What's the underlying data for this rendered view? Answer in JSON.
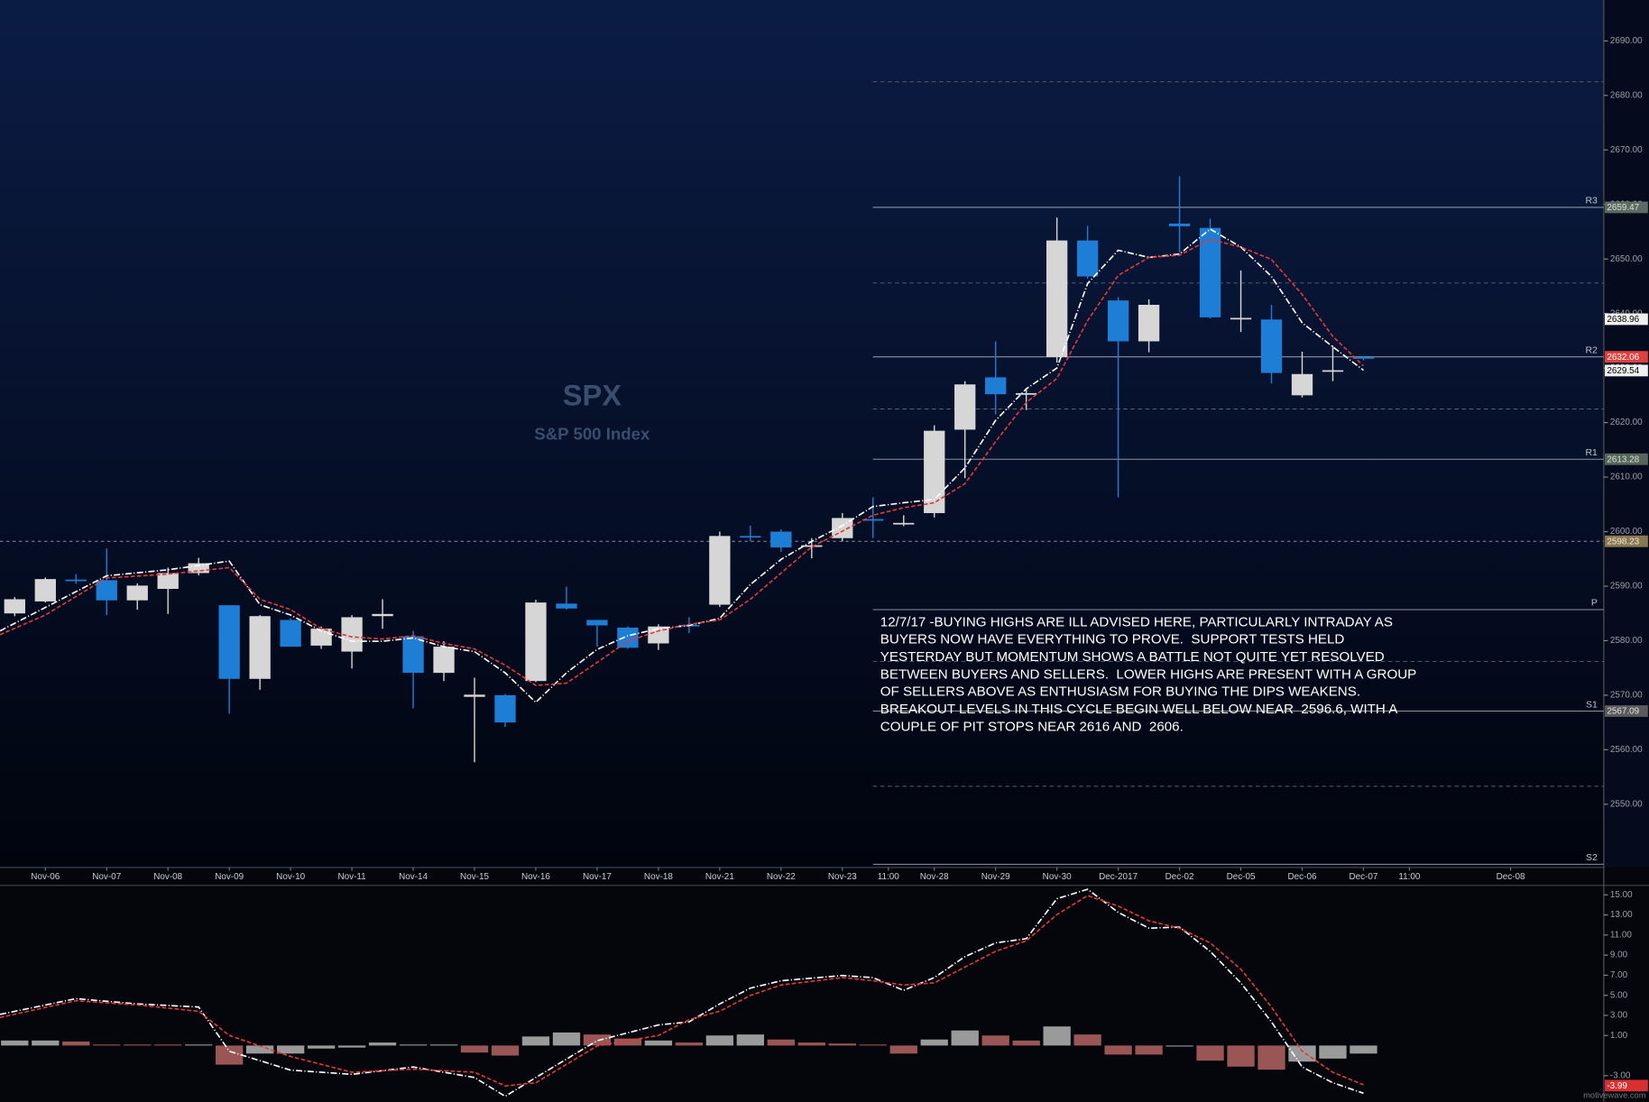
{
  "chart_data": [
    {
      "type": "candlestick",
      "title": "SPX",
      "subtitle": "S&P 500 Index",
      "x": [
        0,
        1,
        2,
        3,
        4,
        5,
        6,
        7,
        8,
        9,
        10,
        11,
        12,
        13,
        14,
        15,
        16,
        17,
        18,
        19,
        20,
        21,
        22,
        23,
        24,
        25,
        26,
        27,
        28,
        29,
        30,
        31,
        32,
        33,
        34,
        35,
        36,
        37,
        38,
        39,
        40,
        41,
        42,
        43,
        44
      ],
      "open": [
        2585.0,
        2587.2,
        2591.2,
        2591.1,
        2587.4,
        2589.5,
        2592.4,
        2586.5,
        2573.0,
        2583.8,
        2579.1,
        2578.0,
        2584.5,
        2580.8,
        2574.1,
        2569.7,
        2570.0,
        2572.6,
        2586.8,
        2583.8,
        2582.4,
        2579.5,
        2582.9,
        2586.6,
        2599.2,
        2600.0,
        2597.2,
        2598.8,
        2602.3,
        2601.4,
        2603.4,
        2618.7,
        2628.3,
        2625.1,
        2632.0,
        2653.4,
        2642.4,
        2634.9,
        2656.5,
        2655.7,
        2639.0,
        2638.9,
        2625.0,
        2629.4,
        2632.0
      ],
      "high": [
        2588.0,
        2591.6,
        2592.2,
        2596.9,
        2590.5,
        2593.4,
        2595.2,
        2586.5,
        2584.7,
        2584.1,
        2582.6,
        2584.7,
        2587.6,
        2581.8,
        2579.9,
        2573.2,
        2570.2,
        2587.5,
        2589.9,
        2583.8,
        2582.6,
        2583.0,
        2584.3,
        2600.0,
        2601.1,
        2600.4,
        2598.8,
        2603.4,
        2606.3,
        2603.0,
        2619.5,
        2627.6,
        2634.9,
        2626.2,
        2657.6,
        2656.1,
        2643.0,
        2642.6,
        2665.2,
        2657.4,
        2647.9,
        2641.6,
        2633.0,
        2634.1,
        2632.2
      ],
      "low": [
        2584.5,
        2587.0,
        2590.4,
        2584.7,
        2585.7,
        2584.9,
        2592.0,
        2566.6,
        2571.0,
        2578.9,
        2578.5,
        2574.9,
        2582.2,
        2567.6,
        2572.6,
        2557.7,
        2564.2,
        2572.4,
        2585.7,
        2578.9,
        2578.5,
        2578.3,
        2581.4,
        2586.2,
        2598.2,
        2596.3,
        2595.1,
        2598.2,
        2598.8,
        2601.0,
        2602.6,
        2609.8,
        2621.5,
        2622.3,
        2631.0,
        2646.4,
        2606.3,
        2632.9,
        2651.2,
        2639.1,
        2636.6,
        2627.2,
        2624.6,
        2627.6,
        2631.4
      ],
      "close": [
        2587.6,
        2591.3,
        2591.0,
        2587.4,
        2590.1,
        2592.4,
        2594.2,
        2573.0,
        2584.5,
        2578.9,
        2582.2,
        2584.3,
        2584.9,
        2574.1,
        2578.9,
        2570.1,
        2565.0,
        2587.0,
        2585.9,
        2582.8,
        2578.7,
        2582.6,
        2582.7,
        2599.2,
        2599.0,
        2597.1,
        2597.5,
        2602.5,
        2602.0,
        2601.6,
        2618.5,
        2627.0,
        2625.2,
        2625.4,
        2653.4,
        2646.8,
        2634.9,
        2641.6,
        2656.0,
        2639.3,
        2639.2,
        2629.1,
        2628.9,
        2629.6,
        2631.8
      ],
      "up_color": "#d6d6d6",
      "down_color": "#1e7ed6",
      "overlays": [
        {
          "color": "#ffffff",
          "dash": "6 2 1 2",
          "x": [
            -0.48,
            1,
            3,
            5,
            7,
            8,
            9,
            10,
            11,
            12,
            13,
            14,
            15,
            16,
            17,
            18,
            19,
            20,
            21,
            22,
            23,
            24,
            25,
            26,
            27,
            28,
            29,
            30,
            31,
            32,
            33,
            34,
            35,
            36,
            37,
            38,
            39,
            40,
            41,
            42,
            43,
            44
          ],
          "values": [
            2581.8,
            2586.1,
            2591.9,
            2593.0,
            2594.6,
            2586.6,
            2584.7,
            2581.8,
            2579.9,
            2579.9,
            2580.5,
            2578.9,
            2578.0,
            2574.1,
            2568.7,
            2574.1,
            2578.4,
            2580.9,
            2582.2,
            2582.8,
            2584.1,
            2590.3,
            2594.9,
            2598.2,
            2601.1,
            2604.6,
            2605.3,
            2605.9,
            2611.7,
            2620.4,
            2626.2,
            2630.0,
            2645.5,
            2651.6,
            2650.3,
            2650.9,
            2655.5,
            2652.2,
            2646.8,
            2638.3,
            2633.9,
            2629.6
          ]
        },
        {
          "color": "#e03a3a",
          "dash": "4 2",
          "x": [
            -0.48,
            1,
            3,
            5,
            7,
            8,
            9,
            10,
            11,
            12,
            13,
            14,
            15,
            16,
            17,
            18,
            19,
            20,
            21,
            22,
            23,
            24,
            25,
            26,
            27,
            28,
            29,
            30,
            31,
            32,
            33,
            34,
            35,
            36,
            37,
            38,
            39,
            40,
            41,
            42,
            43,
            44
          ],
          "values": [
            2581.1,
            2584.7,
            2591.5,
            2592.2,
            2593.4,
            2587.6,
            2585.7,
            2582.2,
            2580.7,
            2580.3,
            2580.9,
            2579.5,
            2578.5,
            2575.5,
            2571.8,
            2572.2,
            2576.0,
            2579.9,
            2581.8,
            2583.0,
            2583.8,
            2587.6,
            2592.4,
            2597.2,
            2600.1,
            2603.0,
            2604.4,
            2605.3,
            2608.8,
            2616.5,
            2623.7,
            2628.1,
            2638.7,
            2647.0,
            2650.3,
            2650.7,
            2653.6,
            2652.2,
            2649.9,
            2643.5,
            2635.8,
            2630.4
          ]
        }
      ],
      "xlim": [
        -0.48,
        51.84
      ],
      "ylim": [
        2538.4,
        2697.5
      ],
      "xticks": [
        {
          "value": 1,
          "label": "Nov-06"
        },
        {
          "value": 3,
          "label": "Nov-07"
        },
        {
          "value": 5,
          "label": "Nov-08"
        },
        {
          "value": 7,
          "label": "Nov-09"
        },
        {
          "value": 9,
          "label": "Nov-10"
        },
        {
          "value": 11,
          "label": "Nov-11"
        },
        {
          "value": 13,
          "label": "Nov-14"
        },
        {
          "value": 15,
          "label": "Nov-15"
        },
        {
          "value": 17,
          "label": "Nov-16"
        },
        {
          "value": 19,
          "label": "Nov-17"
        },
        {
          "value": 21,
          "label": "Nov-18"
        },
        {
          "value": 23,
          "label": "Nov-21"
        },
        {
          "value": 25,
          "label": "Nov-22"
        },
        {
          "value": 27,
          "label": "Nov-23"
        },
        {
          "value": 28.5,
          "label": "11:00"
        },
        {
          "value": 30,
          "label": "Nov-28"
        },
        {
          "value": 32,
          "label": "Nov-29"
        },
        {
          "value": 34,
          "label": "Nov-30"
        },
        {
          "value": 36,
          "label": "Dec-2017"
        },
        {
          "value": 38,
          "label": "Dec-02"
        },
        {
          "value": 40,
          "label": "Dec-05"
        },
        {
          "value": 42,
          "label": "Dec-06"
        },
        {
          "value": 44,
          "label": "Dec-07"
        },
        {
          "value": 45.5,
          "label": "11:00"
        },
        {
          "value": 48.8,
          "label": "Dec-08"
        }
      ],
      "yticks": [
        {
          "value": 2550,
          "label": "2550.00"
        },
        {
          "value": 2560,
          "label": "2560.00"
        },
        {
          "value": 2570,
          "label": "2570.00"
        },
        {
          "value": 2580,
          "label": "2580.00"
        },
        {
          "value": 2590,
          "label": "2590.00"
        },
        {
          "value": 2600,
          "label": "2600.00"
        },
        {
          "value": 2610,
          "label": "2610.00"
        },
        {
          "value": 2620,
          "label": "2620.00"
        },
        {
          "value": 2630,
          "label": "2630.00"
        },
        {
          "value": 2640,
          "label": "2640.00"
        },
        {
          "value": 2650,
          "label": "2650.00"
        },
        {
          "value": 2660,
          "label": "2660.00"
        },
        {
          "value": 2670,
          "label": "2670.00"
        },
        {
          "value": 2680,
          "label": "2680.00"
        },
        {
          "value": 2690,
          "label": "2690.00"
        }
      ],
      "levels": [
        {
          "label": "R3",
          "value": 2659.47,
          "box_color": "#5c6b60",
          "text_color": "#d8e0d8"
        },
        {
          "label": "R2",
          "value": 2632.06,
          "box_color": "#e04040",
          "text_color": "#ffffff"
        },
        {
          "label": "R1",
          "value": 2613.28,
          "box_color": "#56665a",
          "text_color": "#d8e0d8"
        },
        {
          "label": "P",
          "value": 2585.7
        },
        {
          "label": "S1",
          "value": 2567.09,
          "box_color": "#5a5a5a",
          "text_color": "#e0e0e0"
        },
        {
          "label": "S2",
          "value": 2539.0
        }
      ],
      "mid_levels": [
        2682.5,
        2645.6,
        2622.5,
        2576.2,
        2553.3
      ],
      "price_labels": [
        {
          "value": 2638.96,
          "color": "#f0f0f0",
          "text_color": "#000000"
        },
        {
          "value": 2629.54,
          "color": "#f0f0f0",
          "text_color": "#000000"
        }
      ],
      "reference_line": {
        "value": 2598.23,
        "color": "#8a7852",
        "text_color": "#efe6d2"
      },
      "annotation": [
        "12/7/17 -BUYING HIGHS ARE ILL ADVISED HERE, PARTICULARLY INTRADAY AS",
        "BUYERS NOW HAVE EVERYTHING TO PROVE.  SUPPORT TESTS HELD",
        "YESTERDAY BUT MOMENTUM SHOWS A BATTLE NOT QUITE YET RESOLVED",
        "BETWEEN BUYERS AND SELLERS.  LOWER HIGHS ARE PRESENT WITH A GROUP",
        "OF SELLERS ABOVE AS ENTHUSIASM FOR BUYING THE DIPS WEAKENS.",
        "BREAKOUT LEVELS IN THIS CYCLE BEGIN WELL BELOW NEAR  2596.6, WITH A",
        "COUPLE OF PIT STOPS NEAR 2616 AND  2606."
      ]
    },
    {
      "type": "macd",
      "x": [
        -0.48,
        2,
        4,
        6,
        7,
        9,
        11,
        13,
        15,
        16,
        17,
        19,
        21,
        22,
        23,
        24,
        25,
        27,
        28,
        29,
        30,
        31,
        32,
        33,
        34,
        35,
        36,
        37,
        38,
        39,
        40,
        41,
        42,
        43,
        44
      ],
      "series": [
        {
          "color": "#ffffff",
          "dash": "6 2 1 2",
          "values": [
            3.1,
            4.67,
            4.14,
            3.83,
            -0.57,
            -2.45,
            -2.87,
            -2.14,
            -3.18,
            -5.06,
            -3.18,
            0.48,
            2.05,
            2.36,
            4.14,
            5.71,
            6.45,
            6.97,
            6.76,
            5.5,
            6.76,
            8.85,
            10.21,
            10.63,
            14.61,
            15.55,
            13.25,
            11.68,
            11.78,
            9.38,
            6.24,
            2.36,
            -2.14,
            -3.7,
            -4.75
          ]
        },
        {
          "color": "#e03a3a",
          "dash": "4 2",
          "values": [
            2.79,
            4.46,
            4.04,
            3.41,
            1.0,
            -1.09,
            -2.66,
            -2.35,
            -2.66,
            -4.02,
            -3.7,
            -0.04,
            1.0,
            2.57,
            3.41,
            4.98,
            6.03,
            6.76,
            6.45,
            6.03,
            6.24,
            7.81,
            9.38,
            10.42,
            13.03,
            14.92,
            13.88,
            12.41,
            11.68,
            10.21,
            7.6,
            3.83,
            -0.57,
            -2.66,
            -3.91
          ]
        }
      ],
      "histogram": {
        "x": [
          0,
          1,
          2,
          3,
          4,
          5,
          6,
          7,
          8,
          9,
          10,
          11,
          12,
          13,
          14,
          15,
          16,
          17,
          18,
          19,
          20,
          21,
          22,
          23,
          24,
          25,
          26,
          27,
          28,
          29,
          30,
          31,
          32,
          33,
          34,
          35,
          36,
          37,
          38,
          39,
          40,
          41,
          42,
          43,
          44
        ],
        "values": [
          0.5,
          0.5,
          0.4,
          0.1,
          0.1,
          0.1,
          0.1,
          -1.9,
          -0.8,
          -0.8,
          -0.3,
          -0.2,
          0.3,
          0.1,
          0.1,
          -0.7,
          -1.0,
          0.9,
          1.3,
          1.1,
          0.7,
          0.5,
          0.3,
          1.0,
          1.1,
          0.6,
          0.3,
          0.2,
          0.1,
          -0.8,
          0.6,
          1.5,
          1.0,
          0.5,
          1.9,
          1.1,
          -0.9,
          -0.9,
          -0.1,
          -1.5,
          -2.1,
          -2.4,
          -1.6,
          -1.3,
          -0.8
        ],
        "colors": [
          "#9a9a9a",
          "#9a9a9a",
          "#9a5555",
          "#9a5555",
          "#9a5555",
          "#9a5555",
          "#9a9a9a",
          "#9a5555",
          "#9a9a9a",
          "#9a9a9a",
          "#9a9a9a",
          "#9a9a9a",
          "#9a9a9a",
          "#9a9a9a",
          "#9a9a9a",
          "#9a5555",
          "#9a5555",
          "#9a9a9a",
          "#9a9a9a",
          "#9a5555",
          "#9a5555",
          "#9a9a9a",
          "#9a5555",
          "#9a9a9a",
          "#9a9a9a",
          "#9a5555",
          "#9a5555",
          "#9a5555",
          "#9a5555",
          "#9a5555",
          "#9a9a9a",
          "#9a9a9a",
          "#9a5555",
          "#9a5555",
          "#9a9a9a",
          "#9a5555",
          "#9a5555",
          "#9a5555",
          "#9a9a9a",
          "#9a5555",
          "#9a5555",
          "#9a5555",
          "#9a9a9a",
          "#9a9a9a",
          "#9a9a9a"
        ]
      },
      "xlim": [
        -0.48,
        51.84
      ],
      "ylim": [
        -5.62,
        15.94
      ],
      "yticks": [
        {
          "value": 15,
          "label": "15.00"
        },
        {
          "value": 13,
          "label": "13.00"
        },
        {
          "value": 11,
          "label": "11.00"
        },
        {
          "value": 9,
          "label": "9.00"
        },
        {
          "value": 7,
          "label": "7.00"
        },
        {
          "value": 5,
          "label": "5.00"
        },
        {
          "value": 3,
          "label": "3.00"
        },
        {
          "value": 1,
          "label": "1.00"
        },
        {
          "value": -3,
          "label": "-3.00"
        }
      ],
      "last_label": {
        "value": -3.99,
        "color": "#d83030",
        "text_color": "#ffffff"
      }
    }
  ],
  "watermark": "motivewave.com"
}
